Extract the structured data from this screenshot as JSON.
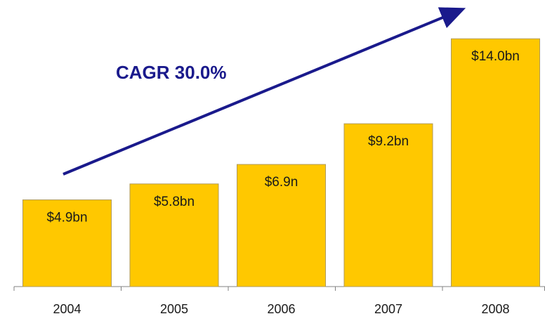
{
  "chart_data": {
    "type": "bar",
    "categories": [
      "2004",
      "2005",
      "2006",
      "2007",
      "2008"
    ],
    "values": [
      4.9,
      5.8,
      6.9,
      9.2,
      14.0
    ],
    "value_labels": [
      "$4.9bn",
      "$5.8bn",
      "$6.9n",
      "$9.2bn",
      "$14.0bn"
    ],
    "color": "#ffc800",
    "annotation": "CAGR 30.0%"
  }
}
